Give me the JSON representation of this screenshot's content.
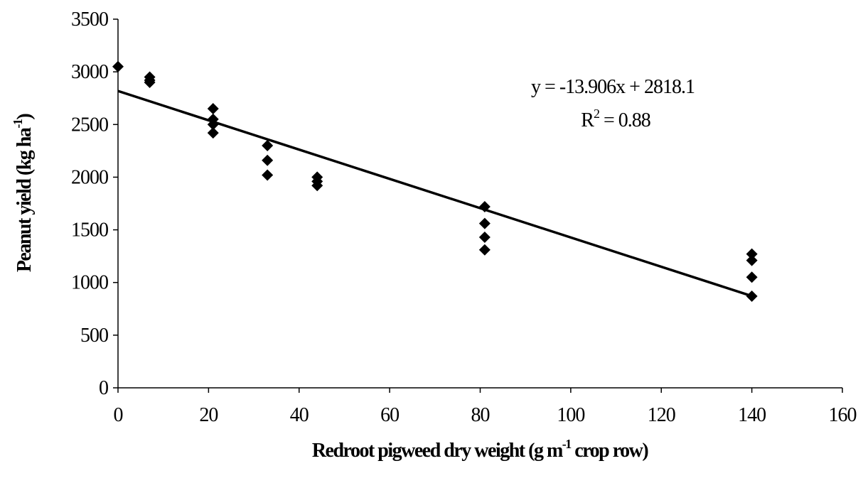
{
  "chart_data": {
    "type": "scatter",
    "title": "",
    "xlabel": {
      "main": "Redroot pigweed dry weight (g m",
      "sup": "-1",
      "tail": " crop row)"
    },
    "ylabel": {
      "main": "Peanut yield (kg ha",
      "sup": "-1",
      "tail": ")"
    },
    "xlim": [
      0,
      160
    ],
    "ylim": [
      0,
      3500
    ],
    "x_ticks": [
      0,
      20,
      40,
      60,
      80,
      100,
      120,
      140,
      160
    ],
    "y_ticks": [
      0,
      500,
      1000,
      1500,
      2000,
      2500,
      3000,
      3500
    ],
    "grid": false,
    "legend": "none",
    "marker": "diamond",
    "marker_color": "#000000",
    "series": [
      {
        "points": [
          {
            "x": 0,
            "y": 3050
          },
          {
            "x": 7,
            "y": 2950
          },
          {
            "x": 7,
            "y": 2920
          },
          {
            "x": 7,
            "y": 2900
          },
          {
            "x": 21,
            "y": 2650
          },
          {
            "x": 21,
            "y": 2550
          },
          {
            "x": 21,
            "y": 2500
          },
          {
            "x": 21,
            "y": 2420
          },
          {
            "x": 33,
            "y": 2300
          },
          {
            "x": 33,
            "y": 2160
          },
          {
            "x": 33,
            "y": 2020
          },
          {
            "x": 44,
            "y": 2000
          },
          {
            "x": 44,
            "y": 1960
          },
          {
            "x": 44,
            "y": 1920
          },
          {
            "x": 81,
            "y": 1720
          },
          {
            "x": 81,
            "y": 1560
          },
          {
            "x": 81,
            "y": 1430
          },
          {
            "x": 81,
            "y": 1310
          },
          {
            "x": 140,
            "y": 1270
          },
          {
            "x": 140,
            "y": 1210
          },
          {
            "x": 140,
            "y": 1050
          },
          {
            "x": 140,
            "y": 870
          }
        ]
      }
    ],
    "trendline": {
      "slope": -13.906,
      "intercept": 2818.1,
      "x_range": [
        0,
        140
      ],
      "equation_text": "y = -13.906x + 2818.1",
      "r2_label": "R",
      "r2_sup": "2",
      "r2_value": " = 0.88"
    }
  }
}
